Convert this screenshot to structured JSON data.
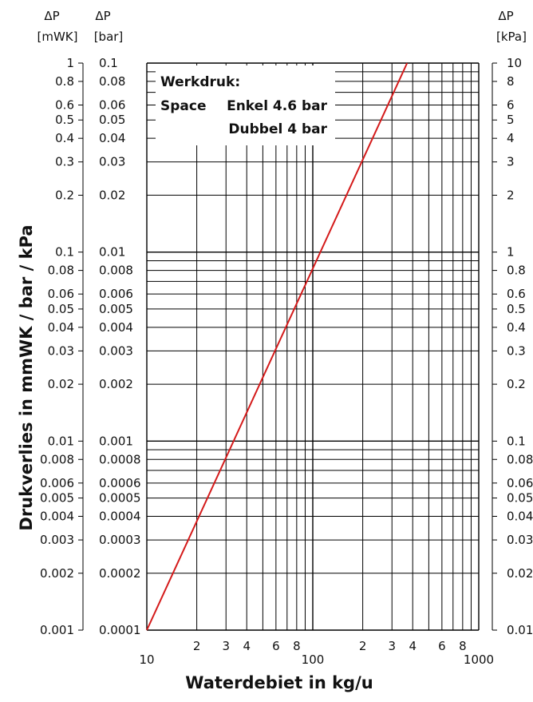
{
  "chart_data": {
    "type": "line",
    "xscale": "log",
    "yscale": "log",
    "xlabel": "Waterdebiet in kg/u",
    "ylabel": "Drukverlies in mmWK / bar / kPa",
    "xlim": [
      10,
      1000
    ],
    "ylim_mwk": [
      0.001,
      1
    ],
    "ylim_bar": [
      0.0001,
      0.1
    ],
    "ylim_kpa": [
      0.01,
      10
    ],
    "grid": true,
    "x_ticks": [
      "10",
      "2",
      "3",
      "4",
      "6",
      "8",
      "100",
      "2",
      "3",
      "4",
      "6",
      "8",
      "1000"
    ],
    "left_axis": {
      "header_symbol": "ΔP",
      "header_unit": "[mWK]",
      "ticks": [
        "1",
        "0.8",
        "0.6",
        "0.5",
        "0.4",
        "0.3",
        "0.2",
        "0.1",
        "0.08",
        "0.06",
        "0.05",
        "0.04",
        "0.03",
        "0.02",
        "0.01",
        "0.008",
        "0.006",
        "0.005",
        "0.004",
        "0.003",
        "0.002",
        "0.001"
      ]
    },
    "mid_axis": {
      "header_symbol": "ΔP",
      "header_unit": "[bar]",
      "ticks": [
        "0.1",
        "0.08",
        "0.06",
        "0.05",
        "0.04",
        "0.03",
        "0.02",
        "0.01",
        "0.008",
        "0.006",
        "0.005",
        "0.004",
        "0.003",
        "0.002",
        "0.001",
        "0.0008",
        "0.0006",
        "0.0005",
        "0.0004",
        "0.0003",
        "0.0002",
        "0.0001"
      ]
    },
    "right_axis": {
      "header_symbol": "ΔP",
      "header_unit": "[kPa]",
      "ticks": [
        "10",
        "8",
        "6",
        "5",
        "4",
        "3",
        "2",
        "1",
        "0.8",
        "0.6",
        "0.5",
        "0.4",
        "0.3",
        "0.2",
        "0.1",
        "0.08",
        "0.06",
        "0.05",
        "0.04",
        "0.03",
        "0.02",
        "0.01"
      ]
    },
    "series": [
      {
        "color": "#d41a1a",
        "points_mwk": [
          [
            10,
            0.001
          ],
          [
            370,
            1
          ]
        ]
      }
    ],
    "annotation": {
      "line1": "Werkdruk:",
      "line2_a": "Space",
      "line2_b": "Enkel 4.6 bar",
      "line3": "Dubbel 4 bar"
    }
  }
}
